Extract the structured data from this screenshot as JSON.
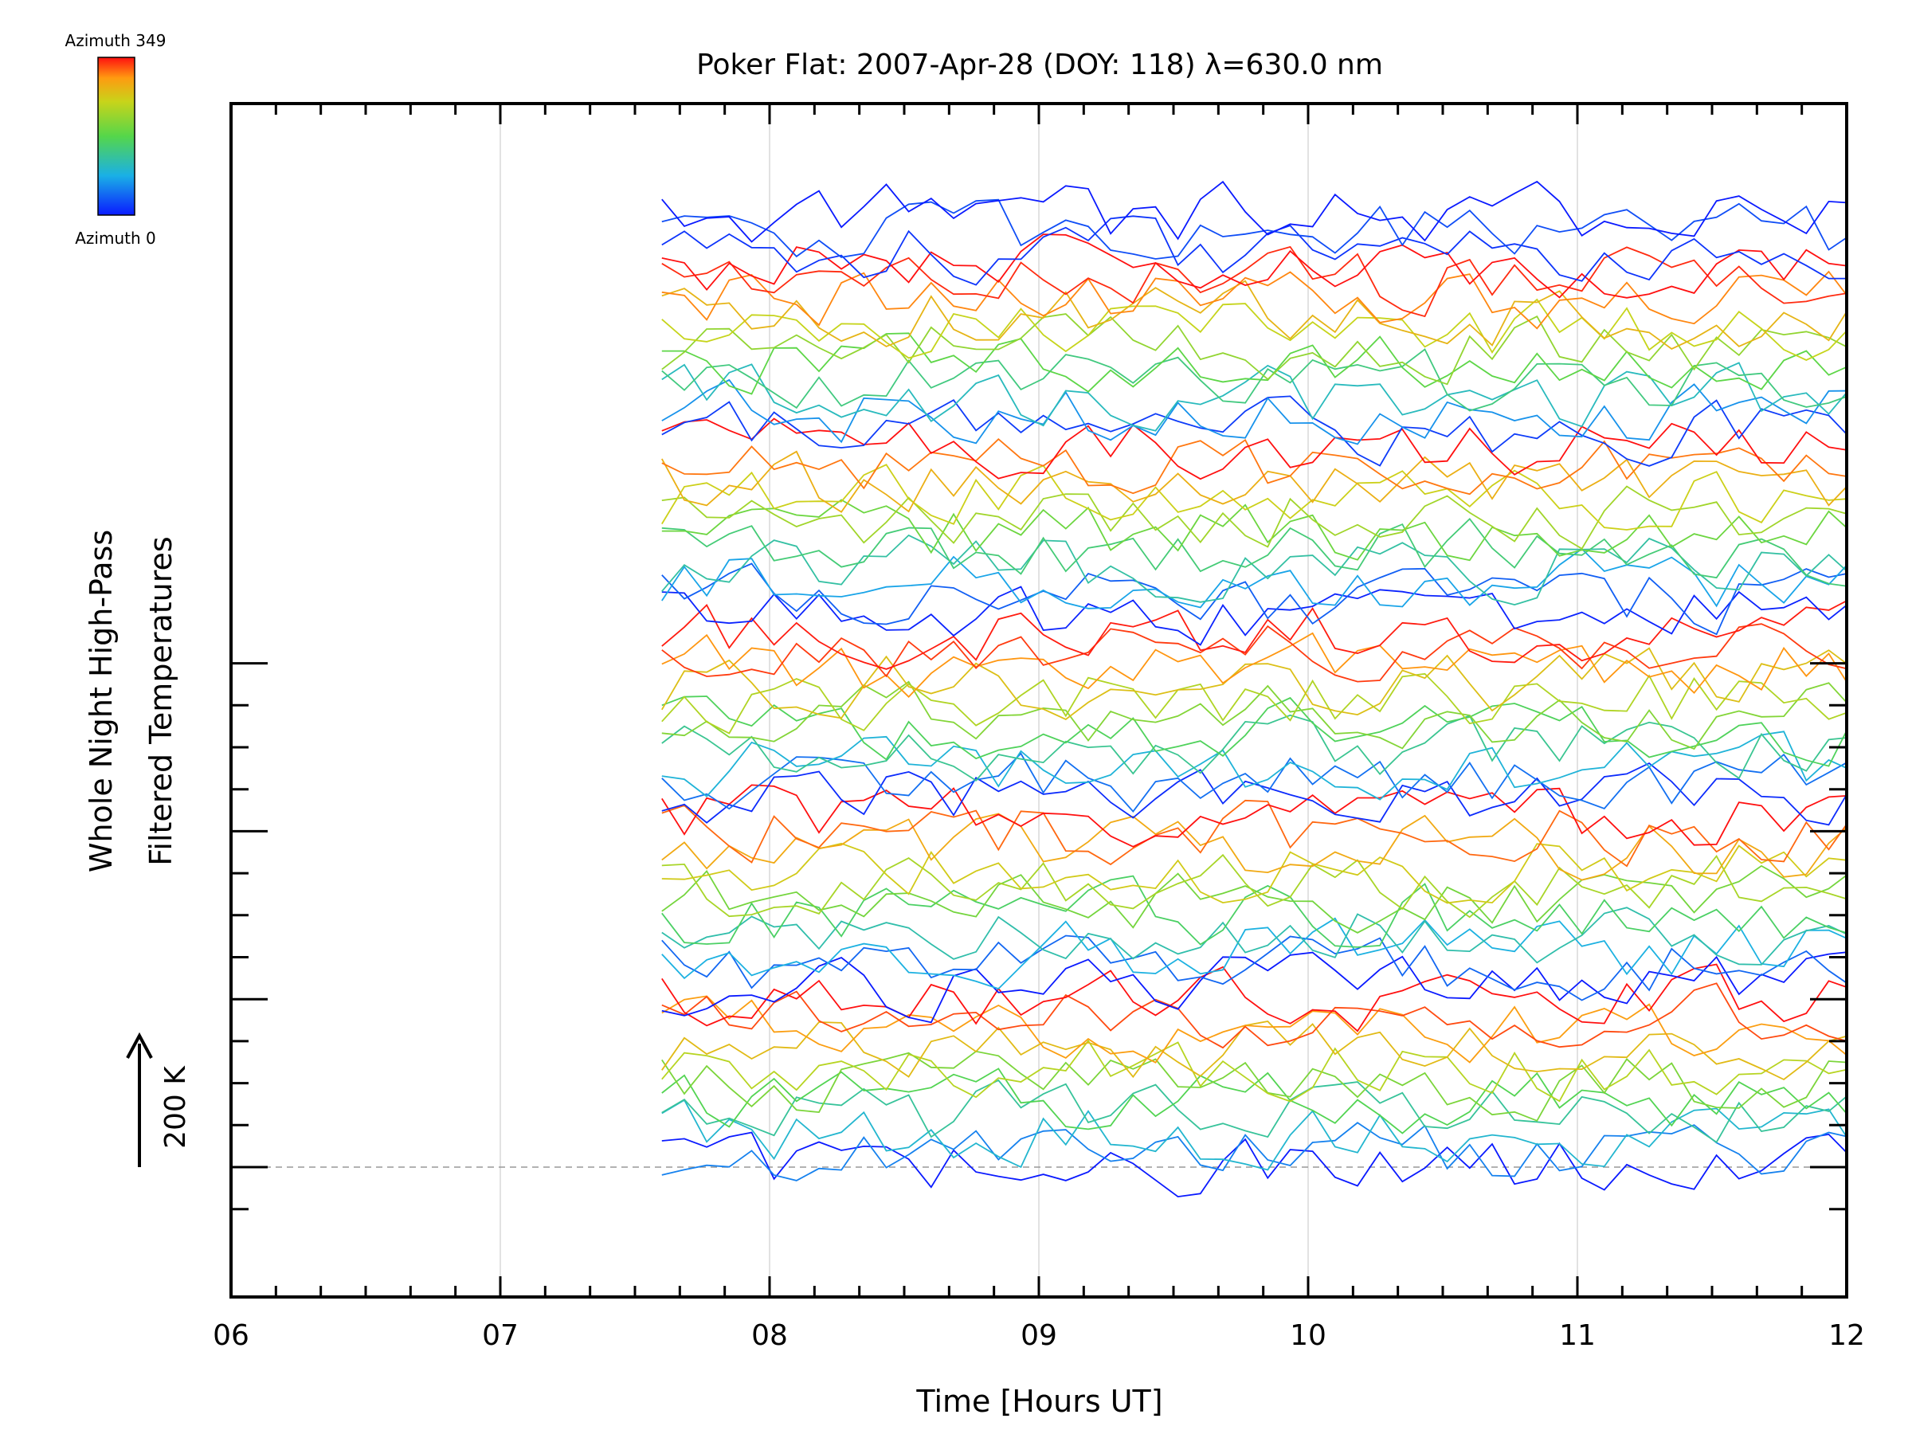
{
  "chart_data": {
    "type": "line",
    "title": "Poker Flat: 2007-Apr-28 (DOY: 118) λ=630.0 nm",
    "xlabel": "Time [Hours UT]",
    "ylabel_line1": "Whole Night High-Pass",
    "ylabel_line2": "Filtered Temperatures",
    "scale_label": "200 K",
    "scale_k": 200,
    "xlim": [
      6,
      12
    ],
    "x_ticks": [
      "06",
      "07",
      "08",
      "09",
      "10",
      "11",
      "12"
    ],
    "colorbar": {
      "top_label": "Azimuth 349",
      "bottom_label": "Azimuth 0",
      "min": 0,
      "max": 349
    },
    "grid": {
      "vertical": true,
      "baseline_dashed": true
    },
    "x_start": 7.6,
    "x_end": 12.0,
    "samples_per_hour": 12,
    "trace_spacing_k": 100,
    "series_azimuths": [
      0,
      60,
      100,
      130,
      170,
      200,
      240,
      275,
      300,
      330,
      349,
      0,
      45,
      90,
      120,
      160,
      195,
      230,
      260,
      290,
      320,
      349,
      10,
      50,
      95,
      135,
      165,
      205,
      235,
      270,
      305,
      335,
      345,
      5,
      40,
      80,
      125,
      150,
      190,
      225,
      255,
      285,
      315,
      349,
      20,
      70,
      110,
      145,
      180,
      215,
      250,
      280,
      310,
      340,
      349,
      15,
      30,
      0
    ]
  }
}
